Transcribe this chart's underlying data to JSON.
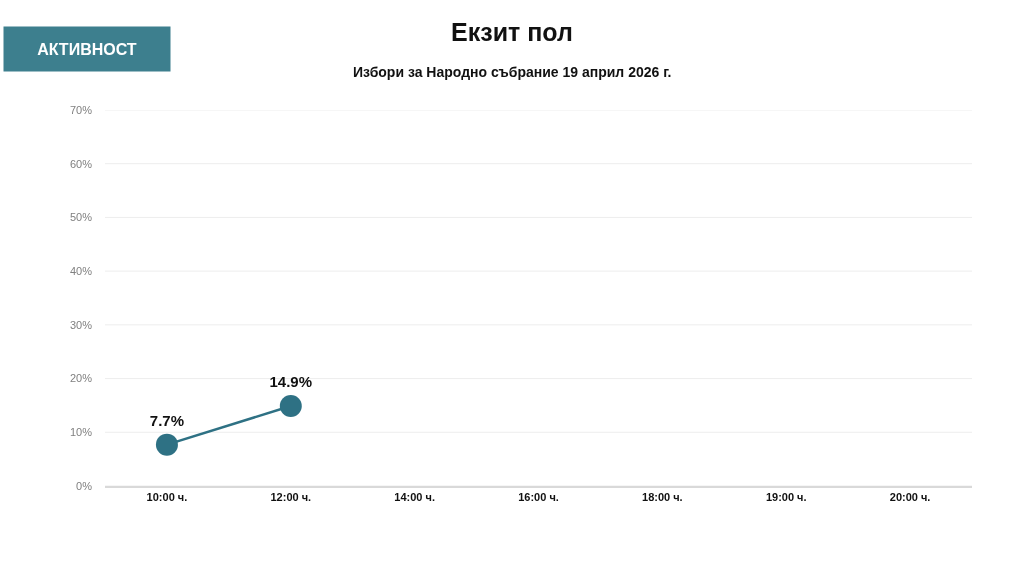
{
  "chart_data": {
    "type": "line",
    "title": "Екзит пол",
    "subtitle": "Избори за Народно събрание 19 април 2026 г.",
    "annotations": [
      "АКТИВНОСТ"
    ],
    "categories": [
      "10:00 ч.",
      "12:00 ч.",
      "14:00 ч.",
      "16:00 ч.",
      "18:00 ч.",
      "19:00 ч.",
      "20:00 ч."
    ],
    "series": [
      {
        "color": "#2e7184",
        "values": [
          7.7,
          14.9,
          null,
          null,
          null,
          null,
          null
        ],
        "value_labels": [
          "7.7%",
          "14.9%",
          null,
          null,
          null,
          null,
          null
        ]
      }
    ],
    "ylim": [
      0,
      70
    ],
    "yticks": [
      {
        "value": 0,
        "label": "0%"
      },
      {
        "value": 10,
        "label": "10%"
      },
      {
        "value": 20,
        "label": "20%"
      },
      {
        "value": 30,
        "label": "30%"
      },
      {
        "value": 40,
        "label": "40%"
      },
      {
        "value": 50,
        "label": "50%"
      },
      {
        "value": 60,
        "label": "60%"
      },
      {
        "value": 70,
        "label": "70%"
      }
    ],
    "grid": "y",
    "marker": "circle",
    "line_style": "solid"
  }
}
